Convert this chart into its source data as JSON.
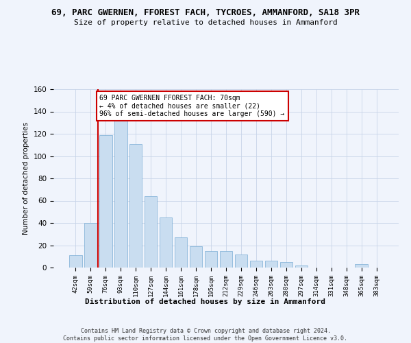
{
  "title1": "69, PARC GWERNEN, FFOREST FACH, TYCROES, AMMANFORD, SA18 3PR",
  "title2": "Size of property relative to detached houses in Ammanford",
  "xlabel": "Distribution of detached houses by size in Ammanford",
  "ylabel": "Number of detached properties",
  "categories": [
    "42sqm",
    "59sqm",
    "76sqm",
    "93sqm",
    "110sqm",
    "127sqm",
    "144sqm",
    "161sqm",
    "178sqm",
    "195sqm",
    "212sqm",
    "229sqm",
    "246sqm",
    "263sqm",
    "280sqm",
    "297sqm",
    "314sqm",
    "331sqm",
    "348sqm",
    "365sqm",
    "383sqm"
  ],
  "values": [
    11,
    40,
    119,
    132,
    111,
    64,
    45,
    27,
    19,
    15,
    15,
    12,
    6,
    6,
    5,
    2,
    0,
    0,
    0,
    3,
    0
  ],
  "bar_color": "#c9ddf0",
  "bar_edge_color": "#7aadd4",
  "vline_index": 1.5,
  "vline_color": "#cc0000",
  "annotation_text": "69 PARC GWERNEN FFOREST FACH: 70sqm\n← 4% of detached houses are smaller (22)\n96% of semi-detached houses are larger (590) →",
  "annotation_box_facecolor": "#ffffff",
  "annotation_box_edgecolor": "#cc0000",
  "footer": "Contains HM Land Registry data © Crown copyright and database right 2024.\nContains public sector information licensed under the Open Government Licence v3.0.",
  "ylim": [
    0,
    160
  ],
  "yticks": [
    0,
    20,
    40,
    60,
    80,
    100,
    120,
    140,
    160
  ],
  "background_color": "#f0f4fc",
  "grid_color": "#c8d4e8"
}
